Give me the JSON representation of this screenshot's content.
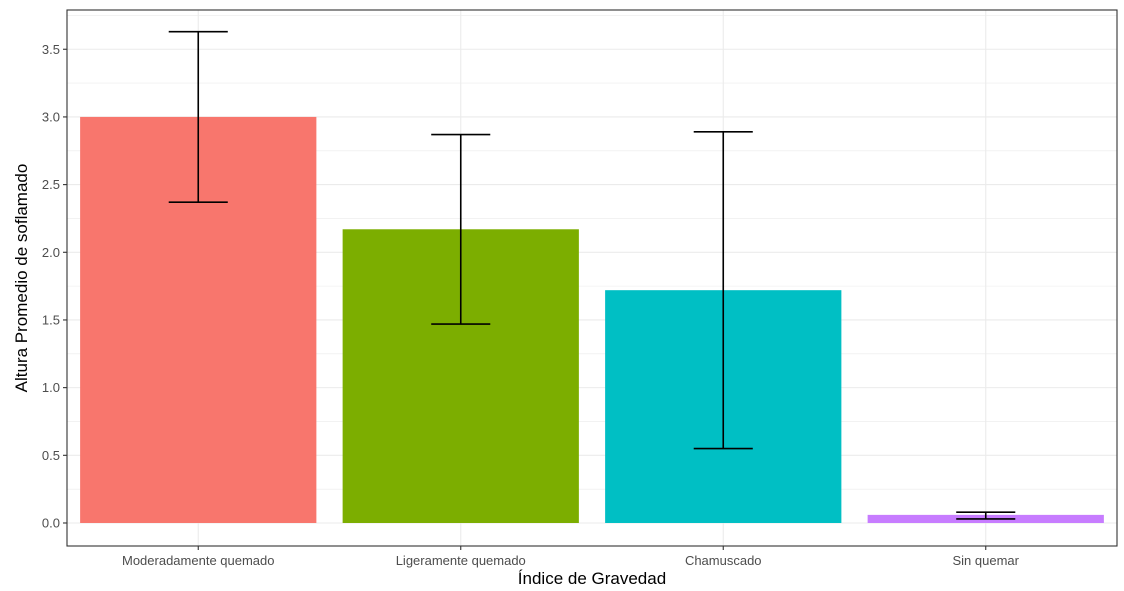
{
  "chart_data": {
    "type": "bar",
    "title": "",
    "xlabel": "Índice de Gravedad",
    "ylabel": "Altura Promedio de soflamado",
    "categories": [
      "Moderadamente quemado",
      "Ligeramente quemado",
      "Chamuscado",
      "Sin quemar"
    ],
    "values": [
      3.0,
      2.17,
      1.72,
      0.06
    ],
    "error_lower": [
      2.37,
      1.47,
      0.55,
      0.03
    ],
    "error_upper": [
      3.63,
      2.87,
      2.89,
      0.08
    ],
    "colors": [
      "#F8766D",
      "#7CAE00",
      "#00BFC4",
      "#C77CFF"
    ],
    "ylim": [
      -0.17,
      3.79
    ],
    "yticks": [
      0.0,
      0.5,
      1.0,
      1.5,
      2.0,
      2.5,
      3.0,
      3.5
    ],
    "ytick_labels": [
      "0.0",
      "0.5",
      "1.0",
      "1.5",
      "2.0",
      "2.5",
      "3.0",
      "3.5"
    ],
    "grid": true,
    "legend": "none"
  }
}
